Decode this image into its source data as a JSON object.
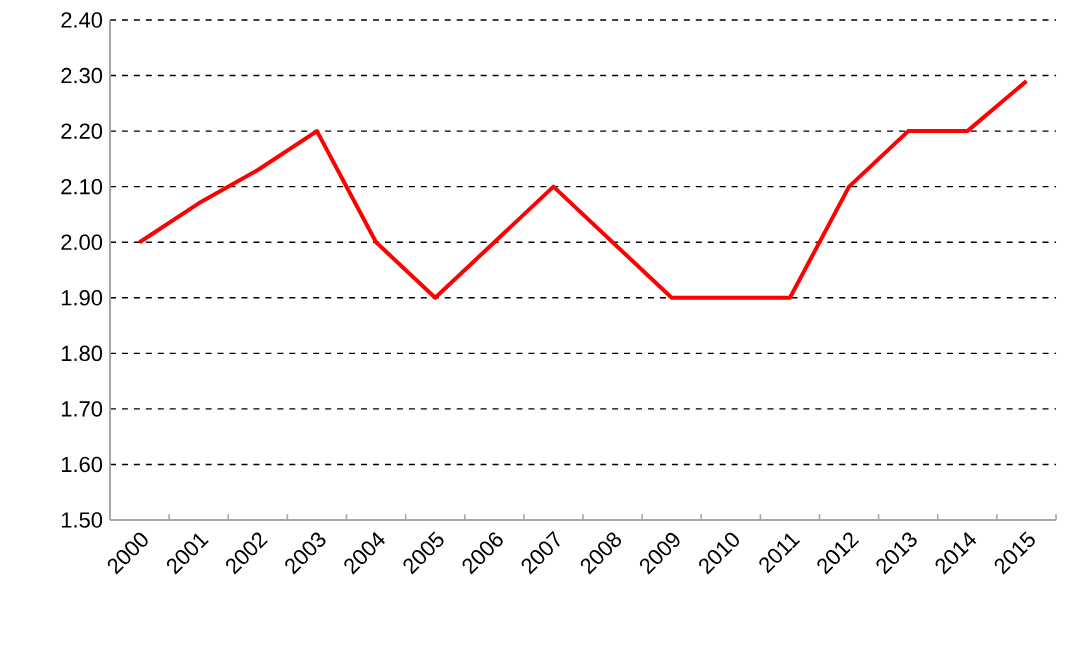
{
  "chart_data": {
    "type": "line",
    "categories": [
      "2000",
      "2001",
      "2002",
      "2003",
      "2004",
      "2005",
      "2006",
      "2007",
      "2008",
      "2009",
      "2010",
      "2011",
      "2012",
      "2013",
      "2014",
      "2015"
    ],
    "series": [
      {
        "color": "#ff0000",
        "values": [
          2.0,
          2.07,
          2.13,
          2.2,
          2.0,
          1.9,
          2.0,
          2.1,
          2.0,
          1.9,
          1.9,
          1.9,
          2.1,
          2.2,
          2.2,
          2.29
        ]
      }
    ],
    "ylim": [
      1.5,
      2.4
    ],
    "yticks": [
      {
        "value": 1.5,
        "label": "1.50"
      },
      {
        "value": 1.6,
        "label": "1.60"
      },
      {
        "value": 1.7,
        "label": "1.70"
      },
      {
        "value": 1.8,
        "label": "1.80"
      },
      {
        "value": 1.9,
        "label": "1.90"
      },
      {
        "value": 2.0,
        "label": "2.00"
      },
      {
        "value": 2.1,
        "label": "2.10"
      },
      {
        "value": 2.2,
        "label": "2.20"
      },
      {
        "value": 2.3,
        "label": "2.30"
      },
      {
        "value": 2.4,
        "label": "2.40"
      }
    ],
    "grid": "y",
    "marker": "none",
    "line_style": "solid"
  }
}
